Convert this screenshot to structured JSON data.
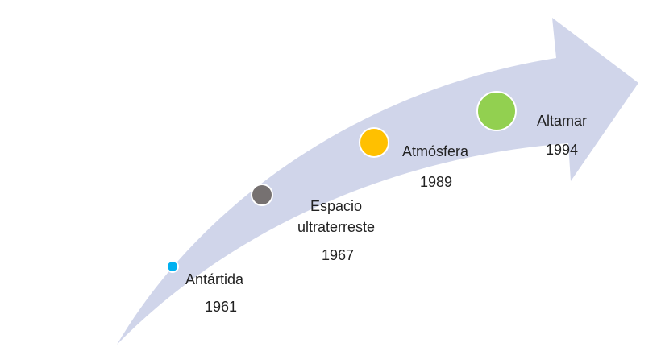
{
  "nodes": [
    {
      "label_lines": [
        "Antártida"
      ],
      "year": "1961"
    },
    {
      "label_lines": [
        "Espacio",
        "ultraterreste"
      ],
      "year": "1967"
    },
    {
      "label_lines": [
        "Atmósfera"
      ],
      "year": "1989"
    },
    {
      "label_lines": [
        "Altamar"
      ],
      "year": "1994"
    }
  ]
}
